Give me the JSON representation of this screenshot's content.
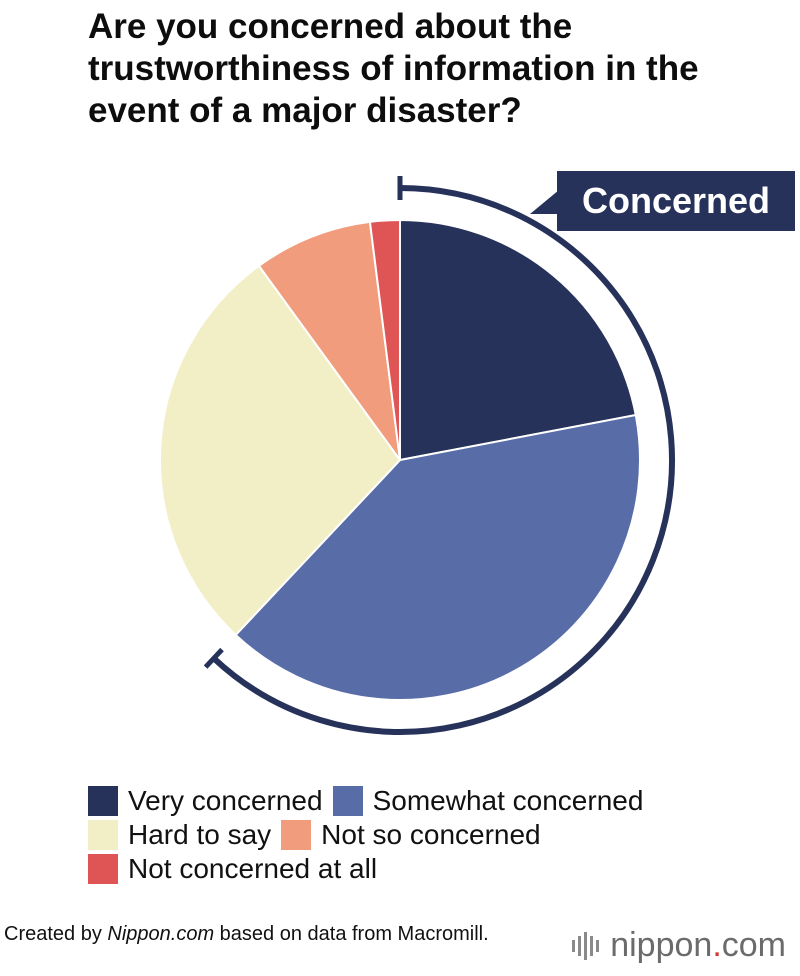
{
  "chart_data": {
    "type": "pie",
    "title": "Are you concerned about the trustworthiness of information in the event of a major disaster?",
    "slices": [
      {
        "label": "Very concerned",
        "value": 22,
        "color": "#263259"
      },
      {
        "label": "Somewhat concerned",
        "value": 40,
        "color": "#586ca8"
      },
      {
        "label": "Hard to say",
        "value": 28,
        "color": "#f2efc6"
      },
      {
        "label": "Not so concerned",
        "value": 8,
        "color": "#f19c7c"
      },
      {
        "label": "Not concerned at all",
        "value": 2,
        "color": "#df5555"
      }
    ],
    "annotation": {
      "label": "Concerned",
      "spans": [
        "Very concerned",
        "Somewhat concerned"
      ]
    },
    "legend": "bottom"
  },
  "source": {
    "prefix": "Created by ",
    "site": "Nippon.com",
    "suffix": " based on data from Macromill."
  },
  "brand": {
    "name": "nippon",
    "dot": ".",
    "tld": "com"
  }
}
